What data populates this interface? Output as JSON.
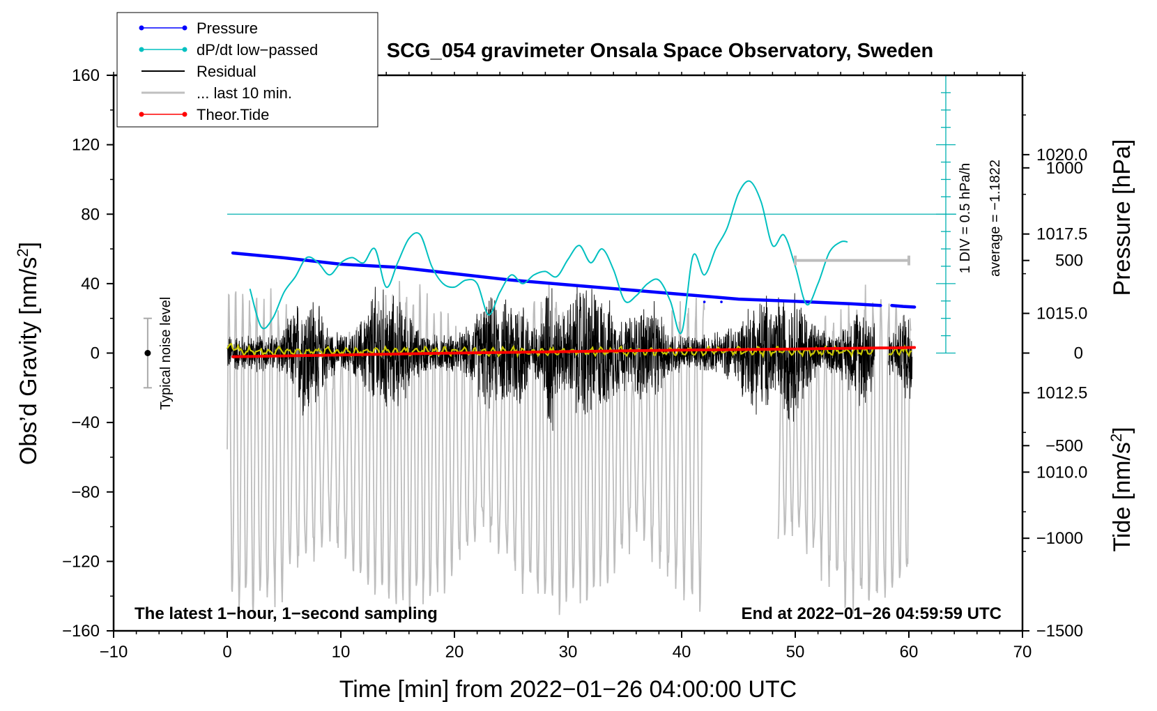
{
  "chart_data": {
    "type": "line",
    "title": "SCG_054 gravimeter Onsala Space Observatory, Sweden",
    "xlabel": "Time [min] from 2022−01−26 04:00:00 UTC",
    "ylabel_left_main": "Obs’d Gravity [nm/s",
    "ylabel_left_sup": "2",
    "ylabel_left_end": "]",
    "ylabel_right_pressure": "Pressure [hPa]",
    "ylabel_right_tide_main": "Tide [nm/s",
    "ylabel_right_tide_sup": "2",
    "ylabel_right_tide_end": "]",
    "xlim": [
      -10,
      70
    ],
    "ylim": [
      -160,
      160
    ],
    "pressure_lim": [
      1005.0,
      1022.5
    ],
    "tide_lim": [
      -1500,
      1500
    ],
    "x_ticks": [
      "−10",
      "0",
      "10",
      "20",
      "30",
      "40",
      "50",
      "60",
      "70"
    ],
    "y_ticks": [
      "160",
      "120",
      "80",
      "40",
      "0",
      "−40",
      "−80",
      "−120",
      "−160"
    ],
    "pressure_ticks": [
      "1020.0",
      "1017.5",
      "1015.0",
      "1012.5",
      "1010.0"
    ],
    "tide_ticks": [
      "1000",
      "500",
      "0",
      "−500",
      "−1000",
      "−1500"
    ],
    "legend": {
      "position": "top-left",
      "entries": [
        {
          "label": "Pressure",
          "color": "#0000ff",
          "marker": true
        },
        {
          "label": "dP/dt low−passed",
          "color": "#00c0c0",
          "marker": true
        },
        {
          "label": "Residual",
          "color": "#000000",
          "marker": false
        },
        {
          "label": "... last 10 min.",
          "color": "#bfbfbf",
          "marker": false
        },
        {
          "label": "Theor.Tide",
          "color": "#ff0000",
          "marker": true
        }
      ]
    },
    "annotations": {
      "bottom_left": "The latest 1−hour, 1−second sampling",
      "bottom_right": "End at 2022−01−26 04:59:59 UTC",
      "noise_label": "Typical noise level",
      "dpdt_scale": "1 DIV = 0.5 hPa/h",
      "dpdt_average": "average = −1.1822"
    },
    "dpdt_reference_y": 80,
    "noise_bar": {
      "x": -7,
      "center": 0,
      "half_range": 20
    },
    "last10_bar": {
      "x_start": 50,
      "x_end": 60,
      "tide": 500
    },
    "series": [
      {
        "name": "Pressure",
        "axis": "pressure",
        "color": "#0000ff",
        "x": [
          0.5,
          5,
          10,
          15,
          20,
          25,
          30,
          35,
          40,
          45,
          50,
          55,
          57.5
        ],
        "values": [
          1016.9,
          1016.75,
          1016.55,
          1016.45,
          1016.25,
          1016.05,
          1015.9,
          1015.75,
          1015.6,
          1015.45,
          1015.38,
          1015.3,
          1015.25
        ],
        "x2": [
          58.5,
          59.5,
          60.5
        ],
        "values2": [
          1015.25,
          1015.22,
          1015.2
        ]
      },
      {
        "name": "dP/dt low−passed",
        "axis": "gravity",
        "color": "#00c0c0",
        "x": [
          2,
          3,
          4,
          5,
          6,
          7,
          8,
          9,
          10,
          11,
          12,
          13,
          14,
          15,
          16,
          17,
          18,
          19,
          20,
          21,
          22,
          23,
          24,
          25,
          26,
          27,
          28,
          29,
          30,
          31,
          32,
          33,
          34,
          35,
          36,
          37,
          38,
          39,
          40,
          41,
          42,
          43,
          44,
          45,
          46,
          47,
          48,
          49,
          50,
          51,
          52,
          53,
          54,
          54.6
        ],
        "values": [
          37,
          15,
          20,
          35,
          44,
          55,
          52,
          45,
          52,
          55,
          52,
          60,
          38,
          52,
          66,
          68,
          50,
          40,
          38,
          42,
          40,
          22,
          35,
          45,
          40,
          45,
          47,
          44,
          54,
          62,
          52,
          60,
          48,
          30,
          33,
          40,
          42,
          30,
          12,
          56,
          45,
          60,
          72,
          92,
          99,
          87,
          62,
          68,
          50,
          28,
          40,
          58,
          64,
          64
        ]
      },
      {
        "name": "Theor.Tide",
        "axis": "tide",
        "color": "#ff0000",
        "x": [
          0.5,
          10,
          20,
          30,
          40,
          50,
          57.5,
          58.5,
          60.5
        ],
        "values": [
          -20,
          -10,
          0,
          8,
          16,
          22,
          28,
          28,
          30
        ]
      }
    ]
  }
}
